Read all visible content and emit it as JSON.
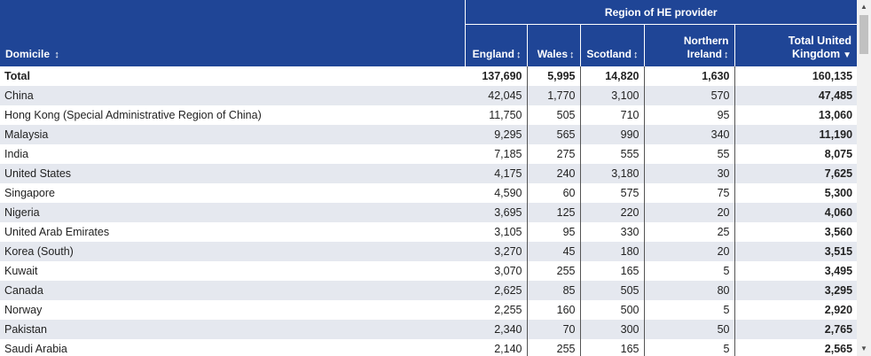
{
  "header": {
    "group_label": "Region of HE provider",
    "columns": {
      "domicile": "Domicile",
      "england": "England",
      "wales": "Wales",
      "scotland": "Scotland",
      "ni_line1": "Northern",
      "ni_line2": "Ireland",
      "total_line1": "Total United",
      "total_line2": "Kingdom"
    },
    "sort_glyph": "↕",
    "sort_active_glyph": "▼"
  },
  "rows": [
    {
      "domicile": "Total",
      "england": "137,690",
      "wales": "5,995",
      "scotland": "14,820",
      "ni": "1,630",
      "total": "160,135"
    },
    {
      "domicile": "China",
      "england": "42,045",
      "wales": "1,770",
      "scotland": "3,100",
      "ni": "570",
      "total": "47,485"
    },
    {
      "domicile": "Hong Kong (Special Administrative Region of China)",
      "england": "11,750",
      "wales": "505",
      "scotland": "710",
      "ni": "95",
      "total": "13,060"
    },
    {
      "domicile": "Malaysia",
      "england": "9,295",
      "wales": "565",
      "scotland": "990",
      "ni": "340",
      "total": "11,190"
    },
    {
      "domicile": "India",
      "england": "7,185",
      "wales": "275",
      "scotland": "555",
      "ni": "55",
      "total": "8,075"
    },
    {
      "domicile": "United States",
      "england": "4,175",
      "wales": "240",
      "scotland": "3,180",
      "ni": "30",
      "total": "7,625"
    },
    {
      "domicile": "Singapore",
      "england": "4,590",
      "wales": "60",
      "scotland": "575",
      "ni": "75",
      "total": "5,300"
    },
    {
      "domicile": "Nigeria",
      "england": "3,695",
      "wales": "125",
      "scotland": "220",
      "ni": "20",
      "total": "4,060"
    },
    {
      "domicile": "United Arab Emirates",
      "england": "3,105",
      "wales": "95",
      "scotland": "330",
      "ni": "25",
      "total": "3,560"
    },
    {
      "domicile": "Korea (South)",
      "england": "3,270",
      "wales": "45",
      "scotland": "180",
      "ni": "20",
      "total": "3,515"
    },
    {
      "domicile": "Kuwait",
      "england": "3,070",
      "wales": "255",
      "scotland": "165",
      "ni": "5",
      "total": "3,495"
    },
    {
      "domicile": "Canada",
      "england": "2,625",
      "wales": "85",
      "scotland": "505",
      "ni": "80",
      "total": "3,295"
    },
    {
      "domicile": "Norway",
      "england": "2,255",
      "wales": "160",
      "scotland": "500",
      "ni": "5",
      "total": "2,920"
    },
    {
      "domicile": "Pakistan",
      "england": "2,340",
      "wales": "70",
      "scotland": "300",
      "ni": "50",
      "total": "2,765"
    },
    {
      "domicile": "Saudi Arabia",
      "england": "2,140",
      "wales": "255",
      "scotland": "165",
      "ni": "5",
      "total": "2,565"
    }
  ],
  "scrollbar": {
    "up_icon": "▲",
    "down_icon": "▼"
  }
}
